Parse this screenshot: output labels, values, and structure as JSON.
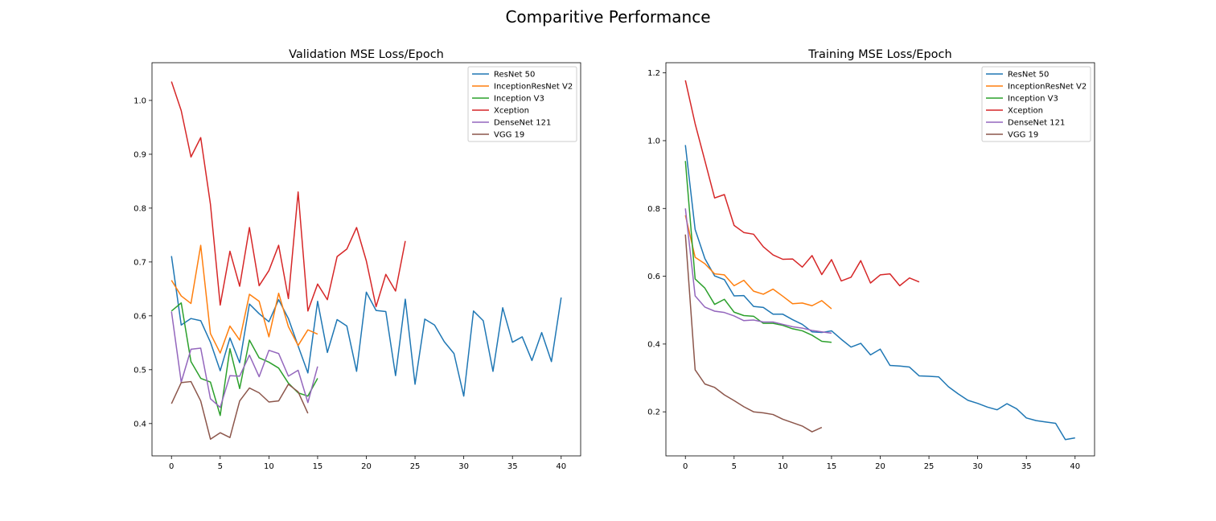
{
  "figure": {
    "title": "Comparitive Performance"
  },
  "chart_data": [
    {
      "type": "line",
      "title": "Validation MSE Loss/Epoch",
      "xlabel": "",
      "ylabel": "",
      "xlim": [
        -2,
        42
      ],
      "ylim": [
        0.34,
        1.07
      ],
      "xticks": [
        0,
        5,
        10,
        15,
        20,
        25,
        30,
        35,
        40
      ],
      "yticks": [
        0.4,
        0.5,
        0.6,
        0.7,
        0.8,
        0.9,
        1.0
      ],
      "grid": false,
      "legend": "top-right",
      "series": [
        {
          "name": "ResNet 50",
          "color": "#1f77b4",
          "values": [
            0.711,
            0.583,
            0.595,
            0.591,
            0.551,
            0.498,
            0.559,
            0.513,
            0.622,
            0.604,
            0.589,
            0.63,
            0.595,
            0.544,
            0.494,
            0.627,
            0.532,
            0.593,
            0.581,
            0.497,
            0.644,
            0.61,
            0.608,
            0.489,
            0.631,
            0.473,
            0.594,
            0.583,
            0.552,
            0.53,
            0.451,
            0.609,
            0.591,
            0.497,
            0.615,
            0.551,
            0.561,
            0.517,
            0.569,
            0.515,
            0.634
          ]
        },
        {
          "name": "InceptionResNet V2",
          "color": "#ff7f0e",
          "values": [
            0.666,
            0.637,
            0.623,
            0.731,
            0.567,
            0.531,
            0.581,
            0.555,
            0.64,
            0.627,
            0.561,
            0.642,
            0.58,
            0.545,
            0.574,
            0.566
          ]
        },
        {
          "name": "Inception V3",
          "color": "#2ca02c",
          "values": [
            0.609,
            0.624,
            0.515,
            0.484,
            0.477,
            0.415,
            0.539,
            0.465,
            0.555,
            0.522,
            0.514,
            0.503,
            0.475,
            0.457,
            0.451,
            0.484
          ]
        },
        {
          "name": "Xception",
          "color": "#d62728",
          "values": [
            1.035,
            0.981,
            0.895,
            0.931,
            0.807,
            0.62,
            0.72,
            0.655,
            0.764,
            0.656,
            0.684,
            0.731,
            0.632,
            0.83,
            0.609,
            0.659,
            0.63,
            0.71,
            0.724,
            0.764,
            0.702,
            0.617,
            0.677,
            0.646,
            0.739
          ]
        },
        {
          "name": "DenseNet 121",
          "color": "#9467bd",
          "values": [
            0.608,
            0.477,
            0.538,
            0.54,
            0.446,
            0.43,
            0.489,
            0.488,
            0.527,
            0.487,
            0.536,
            0.53,
            0.488,
            0.499,
            0.439,
            0.506
          ]
        },
        {
          "name": "VGG 19",
          "color": "#8c564b",
          "values": [
            0.437,
            0.476,
            0.478,
            0.442,
            0.371,
            0.383,
            0.374,
            0.442,
            0.466,
            0.457,
            0.44,
            0.442,
            0.473,
            0.459,
            0.419
          ]
        }
      ]
    },
    {
      "type": "line",
      "title": "Training MSE Loss/Epoch",
      "xlabel": "",
      "ylabel": "",
      "xlim": [
        -2,
        42
      ],
      "ylim": [
        0.07,
        1.23
      ],
      "xticks": [
        0,
        5,
        10,
        15,
        20,
        25,
        30,
        35,
        40
      ],
      "yticks": [
        0.2,
        0.4,
        0.6,
        0.8,
        1.0,
        1.2
      ],
      "grid": false,
      "legend": "top-right",
      "series": [
        {
          "name": "ResNet 50",
          "color": "#1f77b4",
          "values": [
            0.987,
            0.738,
            0.652,
            0.601,
            0.59,
            0.542,
            0.543,
            0.511,
            0.508,
            0.488,
            0.488,
            0.472,
            0.458,
            0.436,
            0.434,
            0.439,
            0.414,
            0.391,
            0.402,
            0.368,
            0.385,
            0.337,
            0.335,
            0.332,
            0.306,
            0.305,
            0.303,
            0.274,
            0.253,
            0.234,
            0.225,
            0.214,
            0.206,
            0.224,
            0.209,
            0.182,
            0.174,
            0.17,
            0.166,
            0.118,
            0.123
          ]
        },
        {
          "name": "InceptionResNet V2",
          "color": "#ff7f0e",
          "values": [
            0.78,
            0.656,
            0.637,
            0.607,
            0.604,
            0.572,
            0.588,
            0.556,
            0.547,
            0.562,
            0.541,
            0.519,
            0.521,
            0.513,
            0.528,
            0.504
          ]
        },
        {
          "name": "Inception V3",
          "color": "#2ca02c",
          "values": [
            0.94,
            0.592,
            0.565,
            0.517,
            0.532,
            0.494,
            0.484,
            0.482,
            0.461,
            0.461,
            0.455,
            0.445,
            0.439,
            0.426,
            0.408,
            0.405
          ]
        },
        {
          "name": "Xception",
          "color": "#d62728",
          "values": [
            1.178,
            1.05,
            0.941,
            0.831,
            0.841,
            0.75,
            0.729,
            0.724,
            0.687,
            0.663,
            0.65,
            0.651,
            0.627,
            0.661,
            0.605,
            0.649,
            0.586,
            0.597,
            0.646,
            0.58,
            0.604,
            0.607,
            0.572,
            0.595,
            0.583
          ]
        },
        {
          "name": "DenseNet 121",
          "color": "#9467bd",
          "values": [
            0.8,
            0.542,
            0.509,
            0.497,
            0.493,
            0.483,
            0.469,
            0.471,
            0.465,
            0.465,
            0.458,
            0.451,
            0.447,
            0.44,
            0.436,
            0.432
          ]
        },
        {
          "name": "VGG 19",
          "color": "#8c564b",
          "values": [
            0.723,
            0.324,
            0.282,
            0.272,
            0.25,
            0.233,
            0.215,
            0.2,
            0.197,
            0.192,
            0.178,
            0.168,
            0.158,
            0.141,
            0.154
          ]
        }
      ]
    }
  ]
}
